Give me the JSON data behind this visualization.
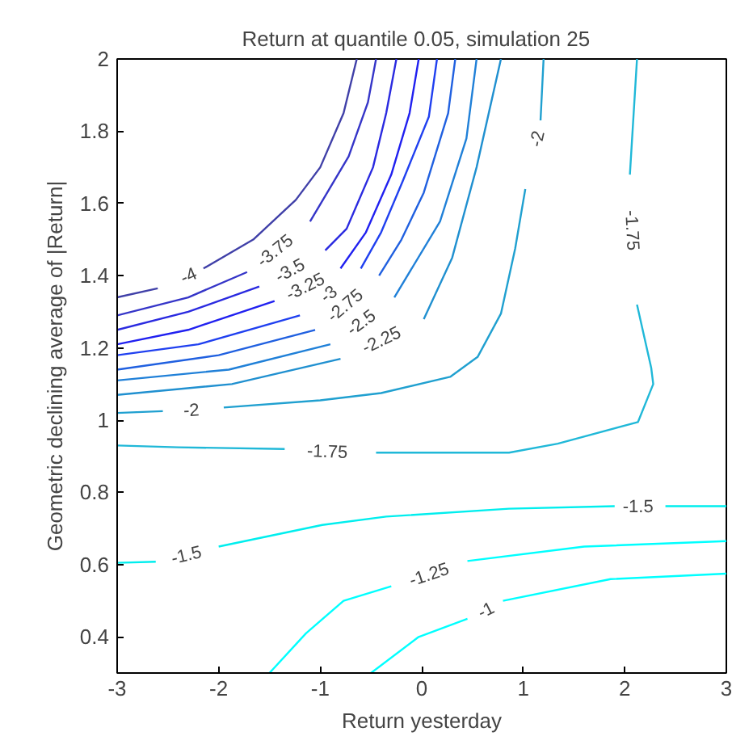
{
  "chart_data": {
    "type": "line",
    "title": "Return at quantile 0.05, simulation   25",
    "xlabel": "Return yesterday",
    "ylabel": "Geometric declining average of |Return|",
    "xlim": [
      -3,
      3
    ],
    "ylim": [
      0.3,
      2
    ],
    "xticks": [
      -3,
      -2,
      -1,
      0,
      1,
      2,
      3
    ],
    "yticks": [
      0.4,
      0.6,
      0.8,
      1,
      1.2,
      1.4,
      1.6,
      1.8,
      2
    ],
    "series": [
      {
        "name": "-4",
        "color": "#4040a8",
        "x": [
          -3,
          -2.6,
          -2.3,
          -2.15,
          -1.66,
          -1.24,
          -1.0,
          -0.77,
          -0.64
        ],
        "values": [
          1.34,
          1.365,
          null,
          1.42,
          1.5,
          1.61,
          1.7,
          1.85,
          2.0
        ]
      },
      {
        "name": "-3.75",
        "color": "#3535c8",
        "x": [
          -3,
          -2.3,
          -1.72,
          -1.45,
          -1.1,
          -0.72,
          -0.53,
          -0.45
        ],
        "values": [
          1.29,
          1.34,
          1.41,
          null,
          1.55,
          1.73,
          1.88,
          2.0
        ]
      },
      {
        "name": "-3.5",
        "color": "#2a2ae0",
        "x": [
          -3,
          -2.3,
          -1.6,
          -1.3,
          -0.95,
          -0.74,
          -0.48,
          -0.35,
          -0.25
        ],
        "values": [
          1.25,
          1.3,
          1.37,
          null,
          1.47,
          1.53,
          1.7,
          1.85,
          2.0
        ]
      },
      {
        "name": "-3.25",
        "color": "#2020f0",
        "x": [
          -3,
          -2.3,
          -1.45,
          -1.15,
          -0.8,
          -0.55,
          -0.3,
          -0.12,
          -0.03
        ],
        "values": [
          1.21,
          1.25,
          1.33,
          null,
          1.42,
          1.52,
          1.68,
          1.85,
          2.0
        ]
      },
      {
        "name": "-3",
        "color": "#2040f0",
        "x": [
          -3,
          -2.2,
          -1.2,
          -0.92,
          -0.6,
          -0.4,
          -0.19,
          0.07,
          0.15
        ],
        "values": [
          1.18,
          1.21,
          1.29,
          null,
          1.42,
          1.52,
          1.66,
          1.84,
          2.0
        ]
      },
      {
        "name": "-2.75",
        "color": "#2060e0",
        "x": [
          -3,
          -2,
          -1.05,
          -0.76,
          -0.42,
          -0.2,
          0.02,
          0.26,
          0.33
        ],
        "values": [
          1.14,
          1.18,
          1.25,
          null,
          1.4,
          1.5,
          1.63,
          1.85,
          2.0
        ]
      },
      {
        "name": "-2.5",
        "color": "#2080d8",
        "x": [
          -3,
          -1.9,
          -0.9,
          -0.6,
          -0.27,
          0.18,
          0.44,
          0.54
        ],
        "values": [
          1.11,
          1.14,
          1.21,
          null,
          1.34,
          1.55,
          1.78,
          2.0
        ]
      },
      {
        "name": "-2.25",
        "color": "#2090d0",
        "x": [
          -3,
          -1.87,
          -0.8,
          -0.4,
          0.02,
          0.3,
          0.54,
          0.78
        ],
        "values": [
          1.07,
          1.1,
          1.17,
          null,
          1.28,
          1.45,
          1.7,
          2.0
        ]
      },
      {
        "name": "-2",
        "color": "#20a0d0",
        "x": [
          -3,
          -2.55,
          -2.27,
          -1.95,
          -1.0,
          -0.4,
          0.28,
          0.55,
          0.78,
          0.92,
          1.02,
          1.13,
          1.17,
          1.2
        ],
        "values": [
          1.02,
          1.025,
          null,
          1.035,
          1.055,
          1.075,
          1.12,
          1.175,
          1.295,
          1.475,
          1.64,
          null,
          1.83,
          2.0
        ]
      },
      {
        "name": "-1.75",
        "color": "#20b8d8",
        "x": [
          -3,
          -2.4,
          -1.35,
          -0.93,
          -0.45,
          0.86,
          1.34,
          2.13,
          2.28,
          2.26,
          2.12,
          2.08,
          2.05,
          2.12
        ],
        "values": [
          0.93,
          0.925,
          0.92,
          null,
          0.91,
          0.91,
          0.935,
          0.995,
          1.1,
          1.145,
          1.32,
          null,
          1.68,
          2.0
        ]
      },
      {
        "name": "-1.5",
        "color": "#00eeee",
        "x": [
          -3,
          -2.62,
          -2.32,
          -2.0,
          -0.98,
          -0.35,
          0.86,
          1.9,
          2.13,
          2.4,
          3
        ],
        "values": [
          0.605,
          0.608,
          null,
          0.65,
          0.71,
          0.733,
          0.755,
          0.762,
          null,
          0.762,
          0.762
        ]
      },
      {
        "name": "-1.25",
        "color": "#00ffff",
        "x": [
          -1.5,
          -1.14,
          -0.77,
          -0.3,
          0.07,
          0.45,
          1.6,
          3
        ],
        "values": [
          0.3,
          0.41,
          0.5,
          0.54,
          null,
          0.61,
          0.65,
          0.665
        ]
      },
      {
        "name": "-1",
        "color": "#00ffff",
        "x": [
          -0.5,
          -0.03,
          0.45,
          0.63,
          0.8,
          1.86,
          3
        ],
        "values": [
          0.3,
          0.4,
          0.45,
          null,
          0.5,
          0.56,
          0.575
        ]
      }
    ]
  }
}
